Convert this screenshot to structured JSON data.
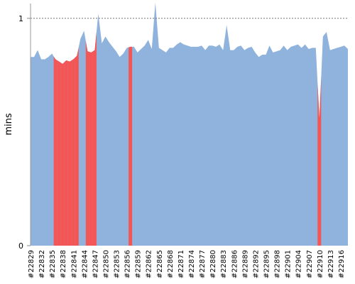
{
  "chart_data": {
    "type": "area",
    "y_label": "mins",
    "categories": [
      "#22829",
      null,
      null,
      "#22832",
      null,
      null,
      "#22835",
      null,
      null,
      "#22838",
      null,
      null,
      "#22841",
      null,
      null,
      "#22844",
      null,
      null,
      "#22847",
      null,
      null,
      "#22850",
      null,
      null,
      "#22853",
      null,
      null,
      "#22856",
      null,
      null,
      "#22859",
      null,
      null,
      "#22862",
      null,
      null,
      "#22865",
      null,
      null,
      "#22868",
      null,
      null,
      "#22871",
      null,
      null,
      "#22874",
      null,
      null,
      "#22877",
      null,
      null,
      "#22880",
      null,
      null,
      "#22883",
      null,
      null,
      "#22886",
      null,
      null,
      "#22889",
      null,
      null,
      "#22892",
      null,
      null,
      "#22895",
      null,
      null,
      "#22898",
      null,
      null,
      "#22901",
      null,
      null,
      "#22904",
      null,
      null,
      "#22907",
      null,
      null,
      "#22910",
      null,
      null,
      "#22913",
      null,
      null,
      "#22916",
      null,
      null
    ],
    "values": [
      0.83,
      0.83,
      0.86,
      0.82,
      0.82,
      0.83,
      0.845,
      0.82,
      0.81,
      0.8,
      0.815,
      0.81,
      0.82,
      0.835,
      0.91,
      0.945,
      0.855,
      0.85,
      0.86,
      1.02,
      0.89,
      0.92,
      0.895,
      0.875,
      0.855,
      0.83,
      0.845,
      0.87,
      0.875,
      0.875,
      0.85,
      0.865,
      0.88,
      0.905,
      0.865,
      1.07,
      0.87,
      0.86,
      0.85,
      0.87,
      0.87,
      0.885,
      0.895,
      0.885,
      0.88,
      0.875,
      0.875,
      0.875,
      0.88,
      0.86,
      0.88,
      0.88,
      0.875,
      0.885,
      0.86,
      0.97,
      0.86,
      0.86,
      0.875,
      0.88,
      0.86,
      0.87,
      0.875,
      0.85,
      0.83,
      0.84,
      0.84,
      0.88,
      0.85,
      0.855,
      0.86,
      0.88,
      0.86,
      0.875,
      0.88,
      0.885,
      0.87,
      0.885,
      0.865,
      0.87,
      0.87,
      0.56,
      0.92,
      0.94,
      0.86,
      0.865,
      0.87,
      0.875,
      0.88,
      0.865
    ],
    "color": "#8fb3dc",
    "highlight_color": "#f45555",
    "highlighted": [
      7,
      8,
      9,
      10,
      11,
      12,
      13,
      16,
      17,
      18,
      28,
      81
    ],
    "ylim": [
      0,
      1.065
    ],
    "yticks": [
      0,
      1
    ],
    "grid": true
  }
}
